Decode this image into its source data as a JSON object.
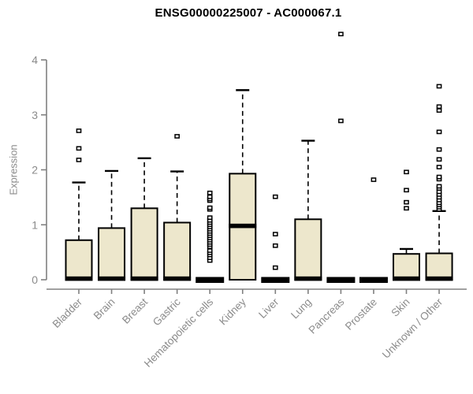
{
  "chart_data": {
    "type": "boxplot",
    "title": "ENSG00000225007 - AC000067.1",
    "xlabel": "",
    "ylabel": "Expression",
    "ylim": [
      0,
      4
    ],
    "yticks": [
      0,
      1,
      2,
      3,
      4
    ],
    "grid": false,
    "legend": "none",
    "categories": [
      "Bladder",
      "Brain",
      "Breast",
      "Gastric",
      "Hematopoietic cells",
      "Kidney",
      "Liver",
      "Lung",
      "Pancreas",
      "Prostate",
      "Skin",
      "Unknown / Other"
    ],
    "boxes": [
      {
        "category": "Bladder",
        "low": 0,
        "q1": 0,
        "median": 0.02,
        "q3": 0.72,
        "high": 1.77,
        "outliers": [
          2.18,
          2.39,
          2.71
        ]
      },
      {
        "category": "Brain",
        "low": 0,
        "q1": 0,
        "median": 0.02,
        "q3": 0.94,
        "high": 1.98,
        "outliers": []
      },
      {
        "category": "Breast",
        "low": 0,
        "q1": 0,
        "median": 0.02,
        "q3": 1.3,
        "high": 2.21,
        "outliers": []
      },
      {
        "category": "Gastric",
        "low": 0,
        "q1": 0,
        "median": 0.02,
        "q3": 1.04,
        "high": 1.97,
        "outliers": [
          2.61
        ]
      },
      {
        "category": "Hematopoietic cells",
        "low": 0,
        "q1": 0,
        "median": 0.02,
        "q3": 0.03,
        "high": 0.03,
        "outliers": [
          0.35,
          0.4,
          0.45,
          0.49,
          0.53,
          0.6,
          0.64,
          0.68,
          0.72,
          0.76,
          0.8,
          0.84,
          0.88,
          0.92,
          0.96,
          1.0,
          1.04,
          1.08,
          1.13,
          1.28,
          1.31,
          1.44,
          1.47,
          1.51,
          1.58
        ]
      },
      {
        "category": "Kidney",
        "low": 0,
        "q1": 0,
        "median": 0.98,
        "q3": 1.93,
        "high": 3.45,
        "outliers": []
      },
      {
        "category": "Liver",
        "low": 0,
        "q1": 0,
        "median": 0.02,
        "q3": 0.03,
        "high": 0.03,
        "outliers": [
          0.22,
          0.62,
          0.83,
          1.51
        ]
      },
      {
        "category": "Lung",
        "low": 0,
        "q1": 0,
        "median": 0.02,
        "q3": 1.1,
        "high": 2.53,
        "outliers": []
      },
      {
        "category": "Pancreas",
        "low": 0,
        "q1": 0,
        "median": 0.02,
        "q3": 0.03,
        "high": 0.03,
        "outliers": [
          2.89,
          4.47
        ]
      },
      {
        "category": "Prostate",
        "low": 0,
        "q1": 0,
        "median": 0.02,
        "q3": 0.03,
        "high": 0.03,
        "outliers": [
          1.82
        ]
      },
      {
        "category": "Skin",
        "low": 0,
        "q1": 0,
        "median": 0.02,
        "q3": 0.47,
        "high": 0.56,
        "outliers": [
          1.3,
          1.41,
          1.63,
          1.96
        ]
      },
      {
        "category": "Unknown / Other",
        "low": 0,
        "q1": 0,
        "median": 0.02,
        "q3": 0.48,
        "high": 1.25,
        "outliers": [
          1.28,
          1.32,
          1.36,
          1.4,
          1.45,
          1.5,
          1.55,
          1.6,
          1.66,
          1.7,
          1.83,
          1.87,
          2.05,
          2.19,
          2.37,
          2.69,
          3.08,
          3.15,
          3.52
        ]
      }
    ],
    "colors": {
      "box_fill": "#EDE7CC",
      "box_stroke": "#000000",
      "median": "#000000",
      "whisker": "#000000",
      "axis": "#808080",
      "tick_label": "#8b8b8b",
      "title": "#000000",
      "background": "#ffffff"
    }
  }
}
